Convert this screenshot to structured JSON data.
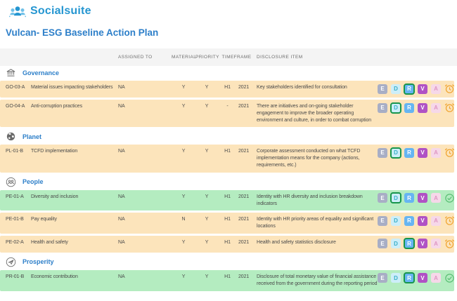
{
  "brand": {
    "name": "Socialsuite"
  },
  "page": {
    "title": "Vulcan- ESG Baseline Action Plan"
  },
  "colors": {
    "brand_blue": "#2596d1",
    "accent_blue": "#2d7fc9",
    "row_orange": "#fce4bb",
    "row_green": "#b4ecc0",
    "active_badge_border": "#17954c",
    "clock_orange": "#f0a431",
    "check_green": "#5abf74"
  },
  "table": {
    "headers": {
      "assigned_to": "ASSIGNED TO",
      "material": "MATERIAL",
      "priority": "PRIORITY",
      "timeframe": "TIMEFRAME",
      "disclosure": "DISCLOSURE ITEM"
    },
    "status_letters": [
      "E",
      "D",
      "R",
      "V",
      "A"
    ],
    "sections": [
      {
        "label": "Governance",
        "icon": "governance-icon",
        "rows": [
          {
            "id": "GO-03-A",
            "name": "Material issues impacting stakeholders",
            "assigned_to": "NA",
            "material": "Y",
            "priority": "Y",
            "timeframe_half": "H1",
            "timeframe_year": "2021",
            "disclosure": "Key stakeholders identified for consultation",
            "highlight": "orange",
            "active_letter": "R",
            "status_icon": "clock-icon"
          },
          {
            "id": "GO-04-A",
            "name": "Anti-corruption practices",
            "assigned_to": "NA",
            "material": "Y",
            "priority": "Y",
            "timeframe_half": "-",
            "timeframe_year": "2021",
            "disclosure": "There are initiatives and on-going stakeholder engagement to improve the broader operating environment and culture, in order to combat corruption",
            "highlight": "orange",
            "active_letter": "D",
            "status_icon": "clock-icon"
          }
        ]
      },
      {
        "label": "Planet",
        "icon": "planet-icon",
        "rows": [
          {
            "id": "PL-01-B",
            "name": "TCFD implementation",
            "assigned_to": "NA",
            "material": "Y",
            "priority": "Y",
            "timeframe_half": "H1",
            "timeframe_year": "2021",
            "disclosure": "Corporate assessment conducted on what TCFD implementation means for the company (actions, requirements, etc.)",
            "highlight": "orange",
            "active_letter": "D",
            "status_icon": "clock-icon"
          }
        ]
      },
      {
        "label": "People",
        "icon": "people-icon",
        "rows": [
          {
            "id": "PE-01-A",
            "name": "Diversity and inclusion",
            "assigned_to": "NA",
            "material": "Y",
            "priority": "Y",
            "timeframe_half": "H1",
            "timeframe_year": "2021",
            "disclosure": "Identity with HR diversity and inclusion breakdown indicators",
            "highlight": "green",
            "active_letter": "D",
            "status_icon": "check-icon"
          },
          {
            "id": "PE-01-B",
            "name": "Pay equality",
            "assigned_to": "NA",
            "material": "N",
            "priority": "Y",
            "timeframe_half": "H1",
            "timeframe_year": "2021",
            "disclosure": "Identity with HR priority areas of equality and significant locations",
            "highlight": "orange",
            "active_letter": "",
            "status_icon": "clock-icon"
          },
          {
            "id": "PE-02-A",
            "name": "Health and safety",
            "assigned_to": "NA",
            "material": "Y",
            "priority": "Y",
            "timeframe_half": "H1",
            "timeframe_year": "2021",
            "disclosure": "Health and safety statistics disclosure",
            "highlight": "orange",
            "active_letter": "R",
            "status_icon": "clock-icon"
          }
        ]
      },
      {
        "label": "Prosperity",
        "icon": "prosperity-icon",
        "rows": [
          {
            "id": "PR-01-B",
            "name": "Economic contribution",
            "assigned_to": "NA",
            "material": "Y",
            "priority": "Y",
            "timeframe_half": "H1",
            "timeframe_year": "2021",
            "disclosure": "Disclosure of total monetary value of financial assistance received from the government during the reporting period",
            "highlight": "green",
            "active_letter": "R",
            "status_icon": "check-icon"
          }
        ]
      }
    ]
  }
}
